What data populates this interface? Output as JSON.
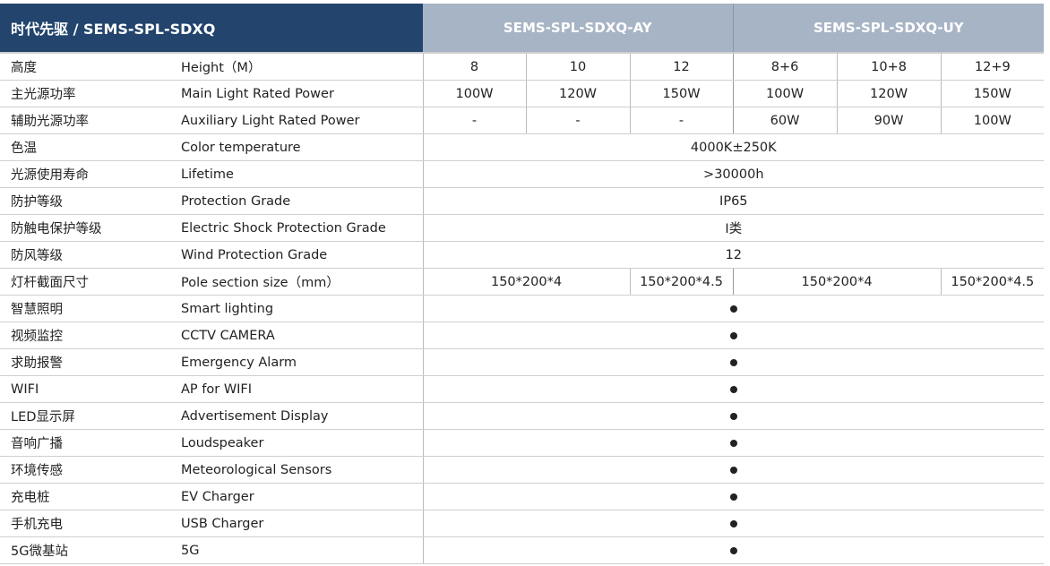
{
  "header": {
    "brand": "时代先驱 / SEMS-SPL-SDXQ",
    "groups": [
      "SEMS-SPL-SDXQ-AY",
      "SEMS-SPL-SDXQ-UY"
    ]
  },
  "rows": [
    {
      "cn": "高度",
      "en": "Height（M）",
      "values": [
        "8",
        "10",
        "12",
        "8+6",
        "10+8",
        "12+9"
      ]
    },
    {
      "cn": "主光源功率",
      "en": "Main Light Rated Power",
      "values": [
        "100W",
        "120W",
        "150W",
        "100W",
        "120W",
        "150W"
      ]
    },
    {
      "cn": "辅助光源功率",
      "en": "Auxiliary Light Rated Power",
      "values": [
        "-",
        "-",
        "-",
        "60W",
        "90W",
        "100W"
      ]
    },
    {
      "cn": "色温",
      "en": "Color temperature",
      "merged": "4000K±250K"
    },
    {
      "cn": "光源使用寿命",
      "en": "Lifetime",
      "merged": ">30000h"
    },
    {
      "cn": "防护等级",
      "en": "Protection Grade",
      "merged": "IP65"
    },
    {
      "cn": "防触电保护等级",
      "en": "Electric Shock Protection Grade",
      "merged": "I类"
    },
    {
      "cn": "防风等级",
      "en": "Wind Protection Grade",
      "merged": "12"
    },
    {
      "cn": "灯杆截面尺寸",
      "en": "Pole section size（mm）",
      "pairs": [
        "150*200*4",
        "150*200*4.5",
        "150*200*4",
        "150*200*4.5"
      ]
    },
    {
      "cn": "智慧照明",
      "en": "Smart lighting",
      "dot": true
    },
    {
      "cn": "视频监控",
      "en": "CCTV CAMERA",
      "dot": true
    },
    {
      "cn": "求助报警",
      "en": "Emergency Alarm",
      "dot": true
    },
    {
      "cn": "WIFI",
      "en": "AP for WIFI",
      "dot": true
    },
    {
      "cn": "LED显示屏",
      "en": "Advertisement Display",
      "dot": true
    },
    {
      "cn": "音响广播",
      "en": "Loudspeaker",
      "dot": true
    },
    {
      "cn": "环境传感",
      "en": "Meteorological Sensors",
      "dot": true
    },
    {
      "cn": "充电桩",
      "en": "EV Charger",
      "dot": true
    },
    {
      "cn": "手机充电",
      "en": "USB Charger",
      "dot": true
    },
    {
      "cn": "5G微基站",
      "en": "5G",
      "dot": true
    }
  ],
  "colors": {
    "header_dark": "#22446d",
    "header_light": "#a7b4c5"
  },
  "icons": {
    "feature_supported": "filled-circle"
  }
}
